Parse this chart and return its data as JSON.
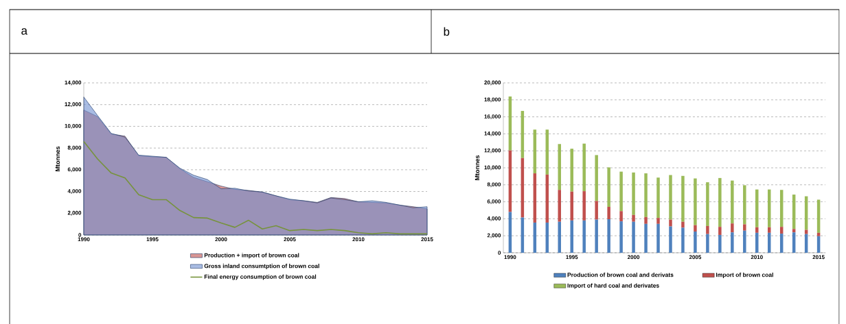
{
  "chart_data": [
    {
      "type": "area",
      "title": "a",
      "ylabel": "Mtonnes",
      "x": [
        1990,
        1991,
        1992,
        1993,
        1994,
        1995,
        1996,
        1997,
        1998,
        1999,
        2000,
        2001,
        2002,
        2003,
        2004,
        2005,
        2006,
        2007,
        2008,
        2009,
        2010,
        2011,
        2012,
        2013,
        2014,
        2015
      ],
      "series": [
        {
          "name": "Production + import of brown coal",
          "color": "#d99694",
          "values": [
            11500,
            10900,
            9300,
            9100,
            7300,
            7200,
            7150,
            6100,
            5300,
            4900,
            4500,
            4200,
            4100,
            3950,
            3600,
            3250,
            3150,
            3000,
            3450,
            3350,
            3050,
            3000,
            2950,
            2750,
            2600,
            2400
          ]
        },
        {
          "name": "Gross inland consumtption of brown coal",
          "color": "#7090d0",
          "values": [
            12700,
            11000,
            9350,
            9000,
            7350,
            7250,
            7150,
            6150,
            5500,
            5100,
            4250,
            4300,
            4050,
            3950,
            3600,
            3300,
            3150,
            2950,
            3400,
            3250,
            3050,
            3150,
            3000,
            2750,
            2500,
            2600
          ]
        },
        {
          "name": "Final energy consumption of brown coal",
          "type": "line",
          "color": "#77933c",
          "values": [
            8600,
            7000,
            5700,
            5250,
            3700,
            3250,
            3250,
            2250,
            1600,
            1550,
            1100,
            700,
            1350,
            550,
            850,
            400,
            500,
            400,
            500,
            400,
            200,
            100,
            200,
            100,
            100,
            100
          ]
        }
      ],
      "xlim": [
        1990,
        2015
      ],
      "xticks": [
        1990,
        1995,
        2000,
        2005,
        2010,
        2015
      ],
      "ylim": [
        0,
        14000
      ],
      "yticks": [
        {
          "value": 0,
          "label": "0"
        },
        {
          "value": 2000,
          "label": "2,000"
        },
        {
          "value": 4000,
          "label": "4,000"
        },
        {
          "value": 6000,
          "label": "6,000"
        },
        {
          "value": 8000,
          "label": "8,000"
        },
        {
          "value": 10000,
          "label": "10,000"
        },
        {
          "value": 12000,
          "label": "12,000"
        },
        {
          "value": 14000,
          "label": "14,000"
        }
      ],
      "grid": "y",
      "legend": "bottom",
      "marker": "none"
    },
    {
      "type": "bar",
      "title": "b",
      "ylabel": "Mtonnes",
      "stacked": true,
      "categories": [
        "1990",
        null,
        null,
        null,
        null,
        "1995",
        null,
        null,
        null,
        null,
        "2000",
        null,
        null,
        null,
        null,
        "2005",
        null,
        null,
        null,
        null,
        "2010",
        null,
        null,
        null,
        null,
        "2015"
      ],
      "series": [
        {
          "name": "Production of brown coal and derivats",
          "color": "#4f81bd",
          "values": [
            4800,
            4150,
            3550,
            3550,
            3650,
            3800,
            3800,
            3900,
            3950,
            3700,
            3650,
            3400,
            3400,
            3100,
            2950,
            2500,
            2200,
            2100,
            2400,
            2600,
            2350,
            2350,
            2250,
            2400,
            2200,
            1950
          ]
        },
        {
          "name": "Import of brown coal",
          "color": "#c0504d",
          "values": [
            7250,
            7000,
            5800,
            5650,
            3750,
            3400,
            3450,
            2200,
            1450,
            1200,
            800,
            800,
            700,
            800,
            700,
            750,
            950,
            950,
            1050,
            750,
            650,
            650,
            800,
            400,
            500,
            400
          ]
        },
        {
          "name": "Import of hard coal and derivates",
          "color": "#9bbb59",
          "values": [
            6350,
            5550,
            5150,
            5300,
            5400,
            5050,
            5600,
            5400,
            4650,
            4650,
            5000,
            5150,
            4750,
            5250,
            5400,
            5500,
            5150,
            5750,
            5050,
            4600,
            4450,
            4450,
            4350,
            4050,
            3950,
            3900
          ]
        }
      ],
      "ylim": [
        0,
        20000
      ],
      "yticks": [
        {
          "value": 0,
          "label": "0"
        },
        {
          "value": 2000,
          "label": "2,000"
        },
        {
          "value": 4000,
          "label": "4,000"
        },
        {
          "value": 6000,
          "label": "6,000"
        },
        {
          "value": 8000,
          "label": "8,000"
        },
        {
          "value": 10000,
          "label": "10,000"
        },
        {
          "value": 12000,
          "label": "12,000"
        },
        {
          "value": 14000,
          "label": "14,000"
        },
        {
          "value": 16000,
          "label": "16,000"
        },
        {
          "value": 18000,
          "label": "18,000"
        },
        {
          "value": 20000,
          "label": "20,000"
        }
      ],
      "grid": "y",
      "legend": "bottom"
    }
  ]
}
